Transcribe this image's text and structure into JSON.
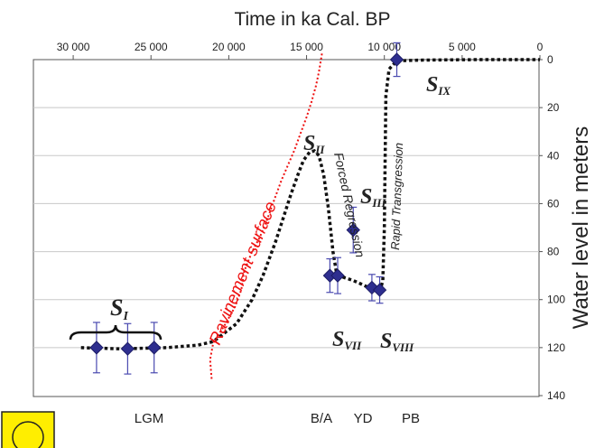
{
  "chart_data": {
    "type": "scatter",
    "title": "Time in ka Cal. BP",
    "ylabel": "Water level in meters",
    "x_ticks": [
      "30 000",
      "25 000",
      "20 000",
      "15 000",
      "10 000",
      "5 000",
      "0"
    ],
    "y_ticks": [
      "0",
      "20",
      "40",
      "60",
      "80",
      "100",
      "120",
      "140"
    ],
    "xlim": [
      32500,
      0
    ],
    "ylim": [
      0,
      140
    ],
    "grid": "horizontal",
    "colors": {
      "points": "#2e2e8f",
      "curve": "#111111",
      "ravinement": "#ee1111",
      "grid": "#c8c8c8"
    },
    "points": [
      {
        "x": 28500,
        "y": 120,
        "err": 10.5
      },
      {
        "x": 26500,
        "y": 120.5,
        "err": 10.5
      },
      {
        "x": 24800,
        "y": 120,
        "err": 10.5
      },
      {
        "x": 13500,
        "y": 90,
        "err": 7
      },
      {
        "x": 13000,
        "y": 90,
        "err": 7.5
      },
      {
        "x": 12000,
        "y": 71,
        "err": 9.5
      },
      {
        "x": 10800,
        "y": 95,
        "err": 5.5
      },
      {
        "x": 10300,
        "y": 96,
        "err": 5.5
      },
      {
        "x": 9200,
        "y": 0,
        "err": 7
      }
    ],
    "sea_level_curve": [
      [
        29500,
        120
      ],
      [
        27000,
        120.5
      ],
      [
        24000,
        120
      ],
      [
        22000,
        119
      ],
      [
        21000,
        117.5
      ],
      [
        20500,
        115
      ],
      [
        19500,
        110
      ],
      [
        18500,
        100
      ],
      [
        17800,
        90
      ],
      [
        17000,
        76
      ],
      [
        16500,
        66
      ],
      [
        16000,
        56
      ],
      [
        15500,
        47
      ],
      [
        15200,
        42
      ],
      [
        14800,
        38.5
      ],
      [
        14500,
        38
      ],
      [
        14200,
        40
      ],
      [
        13900,
        48
      ],
      [
        13600,
        62
      ],
      [
        13300,
        80
      ],
      [
        13100,
        88
      ],
      [
        12900,
        90
      ],
      [
        12500,
        91
      ],
      [
        12000,
        92
      ],
      [
        11500,
        93.5
      ],
      [
        11000,
        95
      ],
      [
        10600,
        96
      ],
      [
        10300,
        97
      ],
      [
        10100,
        92
      ],
      [
        10000,
        70
      ],
      [
        9950,
        40
      ],
      [
        9900,
        15
      ],
      [
        9700,
        4
      ],
      [
        9200,
        0.5
      ],
      [
        7500,
        0.2
      ],
      [
        4000,
        0
      ],
      [
        0,
        0
      ]
    ],
    "ravinement_surface": [
      [
        21100,
        133
      ],
      [
        21200,
        125
      ],
      [
        21000,
        118
      ],
      [
        20200,
        110
      ],
      [
        19600,
        103
      ],
      [
        19200,
        96
      ],
      [
        19000,
        88
      ],
      [
        18500,
        80
      ],
      [
        18000,
        74
      ],
      [
        17500,
        66
      ],
      [
        17000,
        57
      ],
      [
        16600,
        50
      ],
      [
        16200,
        44
      ],
      [
        15800,
        38
      ],
      [
        15400,
        31
      ],
      [
        15000,
        24
      ],
      [
        14700,
        18
      ],
      [
        14400,
        11
      ],
      [
        14200,
        5
      ],
      [
        14000,
        -3
      ]
    ],
    "stage_labels": [
      {
        "label": "S",
        "sub": "I"
      },
      {
        "label": "S",
        "sub": "II"
      },
      {
        "label": "S",
        "sub": "III"
      },
      {
        "label": "S",
        "sub": "VII"
      },
      {
        "label": "S",
        "sub": "VIII"
      },
      {
        "label": "S",
        "sub": "IX"
      }
    ],
    "annotations": [
      "Ravinement surface",
      "Forced Regression",
      "Rapid Transgression"
    ],
    "periods": [
      "LGM",
      "B/A",
      "YD",
      "PB"
    ]
  }
}
